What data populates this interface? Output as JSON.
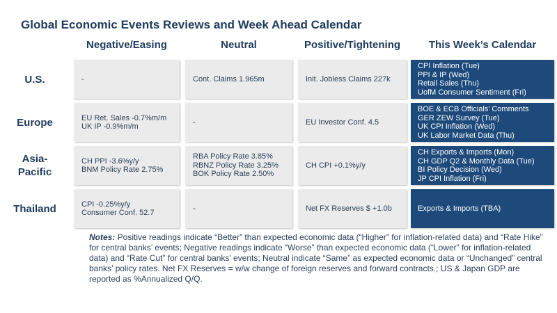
{
  "title": "Global Economic Events Reviews and Week Ahead Calendar",
  "columns": [
    "Negative/Easing",
    "Neutral",
    "Positive/Tightening",
    "This Week’s Calendar"
  ],
  "rows": [
    {
      "label": [
        "U.S."
      ],
      "negative": [
        "-"
      ],
      "neutral": [
        "Cont. Claims 1.965m"
      ],
      "positive": [
        "Init. Jobless Claims 227k"
      ],
      "calendar": [
        "CPI Inflation (Tue)",
        "PPI & IP (Wed)",
        "Retail Sales (Thu)",
        "UofM Consumer Sentiment (Fri)"
      ]
    },
    {
      "label": [
        "Europe"
      ],
      "negative": [
        "EU Ret. Sales -0.7%m/m",
        "UK IP -0.9%m/m"
      ],
      "neutral": [
        "-"
      ],
      "positive": [
        "EU Investor Conf. 4.5"
      ],
      "calendar": [
        "BOE & ECB Officials’ Comments",
        "GER ZEW Survey (Tue)",
        "UK CPI Inflation (Wed)",
        "UK Labor Market Data (Thu)"
      ]
    },
    {
      "label": [
        "Asia-",
        "Pacific"
      ],
      "negative": [
        "CH PPI -3.6%y/y",
        "BNM Policy Rate 2.75%"
      ],
      "neutral": [
        "RBA Policy Rate 3.85%",
        "RBNZ Policy Rate 3.25%",
        "BOK Policy Rate 2.50%"
      ],
      "positive": [
        "CH CPI +0.1%y/y"
      ],
      "calendar": [
        "CH Exports & Imports (Mon)",
        "CH GDP Q2 & Monthly Data (Tue)",
        "BI Policy Decision (Wed)",
        "JP CPI Inflation (Fri)"
      ]
    },
    {
      "label": [
        "Thailand"
      ],
      "negative": [
        "CPI -0.25%y/y",
        "Consumer Conf. 52.7"
      ],
      "neutral": [
        "-"
      ],
      "positive": [
        "Net FX Reserves $ +1.0b"
      ],
      "calendar": [
        "Exports & Imports (TBA)"
      ]
    }
  ],
  "notes": {
    "label": "Notes:",
    "text": " Positive readings indicate “Better” than expected economic data (“Higher” for inflation-related data) and “Rate Hike” for central banks’ events; Negative readings indicate “Worse” than expected economic data (“Lower” for inflation-related data) and “Rate Cut” for central banks’ events; Neutral indicate “Same” as expected economic data or “Unchanged” central banks’ policy rates. Net FX Reserves = w/w change of foreign reserves and forward contracts.; US & Japan GDP are reported as %Annualized Q/Q."
  }
}
